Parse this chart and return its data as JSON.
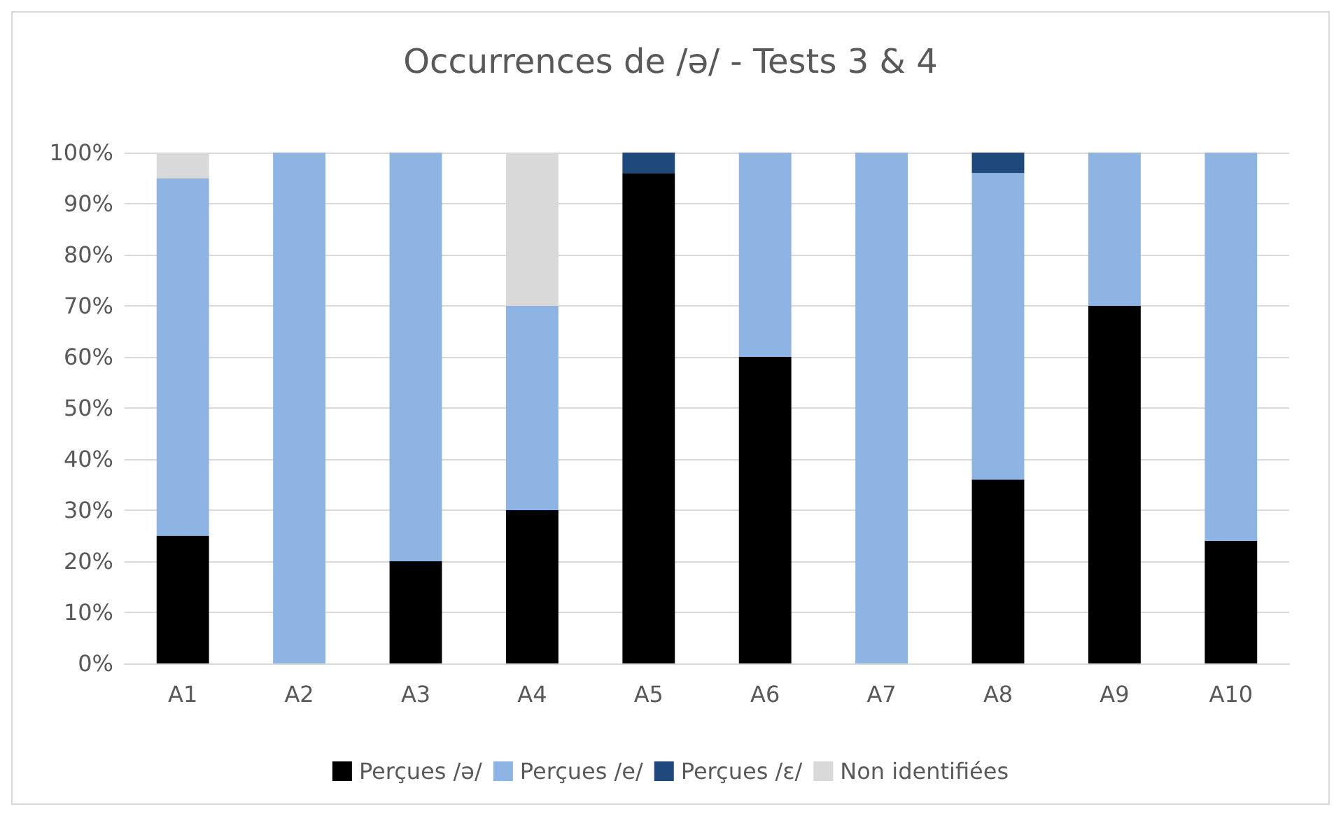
{
  "chart_data": {
    "type": "bar",
    "title": "Occurrences de /ə/ - Tests 3 & 4",
    "stacked": true,
    "categories": [
      "A1",
      "A2",
      "A3",
      "A4",
      "A5",
      "A6",
      "A7",
      "A8",
      "A9",
      "A10"
    ],
    "series": [
      {
        "name": "Perçues /ə/",
        "color": "#000000",
        "values": [
          25,
          0,
          20,
          30,
          96,
          60,
          0,
          36,
          70,
          24
        ]
      },
      {
        "name": "Perçues /e/",
        "color": "#8eb4e3",
        "values": [
          70,
          100,
          80,
          40,
          0,
          40,
          100,
          60,
          30,
          76
        ]
      },
      {
        "name": "Perçues /ɛ/",
        "color": "#1f497d",
        "values": [
          0,
          0,
          0,
          0,
          4,
          0,
          0,
          4,
          0,
          0
        ]
      },
      {
        "name": "Non identifiées",
        "color": "#d9d9d9",
        "values": [
          5,
          0,
          0,
          30,
          0,
          0,
          0,
          0,
          0,
          0
        ]
      }
    ],
    "ylim": [
      0,
      100
    ],
    "yticks": [
      {
        "value": 0,
        "label": "0%"
      },
      {
        "value": 10,
        "label": "10%"
      },
      {
        "value": 20,
        "label": "20%"
      },
      {
        "value": 30,
        "label": "30%"
      },
      {
        "value": 40,
        "label": "40%"
      },
      {
        "value": 50,
        "label": "50%"
      },
      {
        "value": 60,
        "label": "60%"
      },
      {
        "value": 70,
        "label": "70%"
      },
      {
        "value": 80,
        "label": "80%"
      },
      {
        "value": 90,
        "label": "90%"
      },
      {
        "value": 100,
        "label": "100%"
      }
    ],
    "grid": "y",
    "legend": "bottom"
  }
}
